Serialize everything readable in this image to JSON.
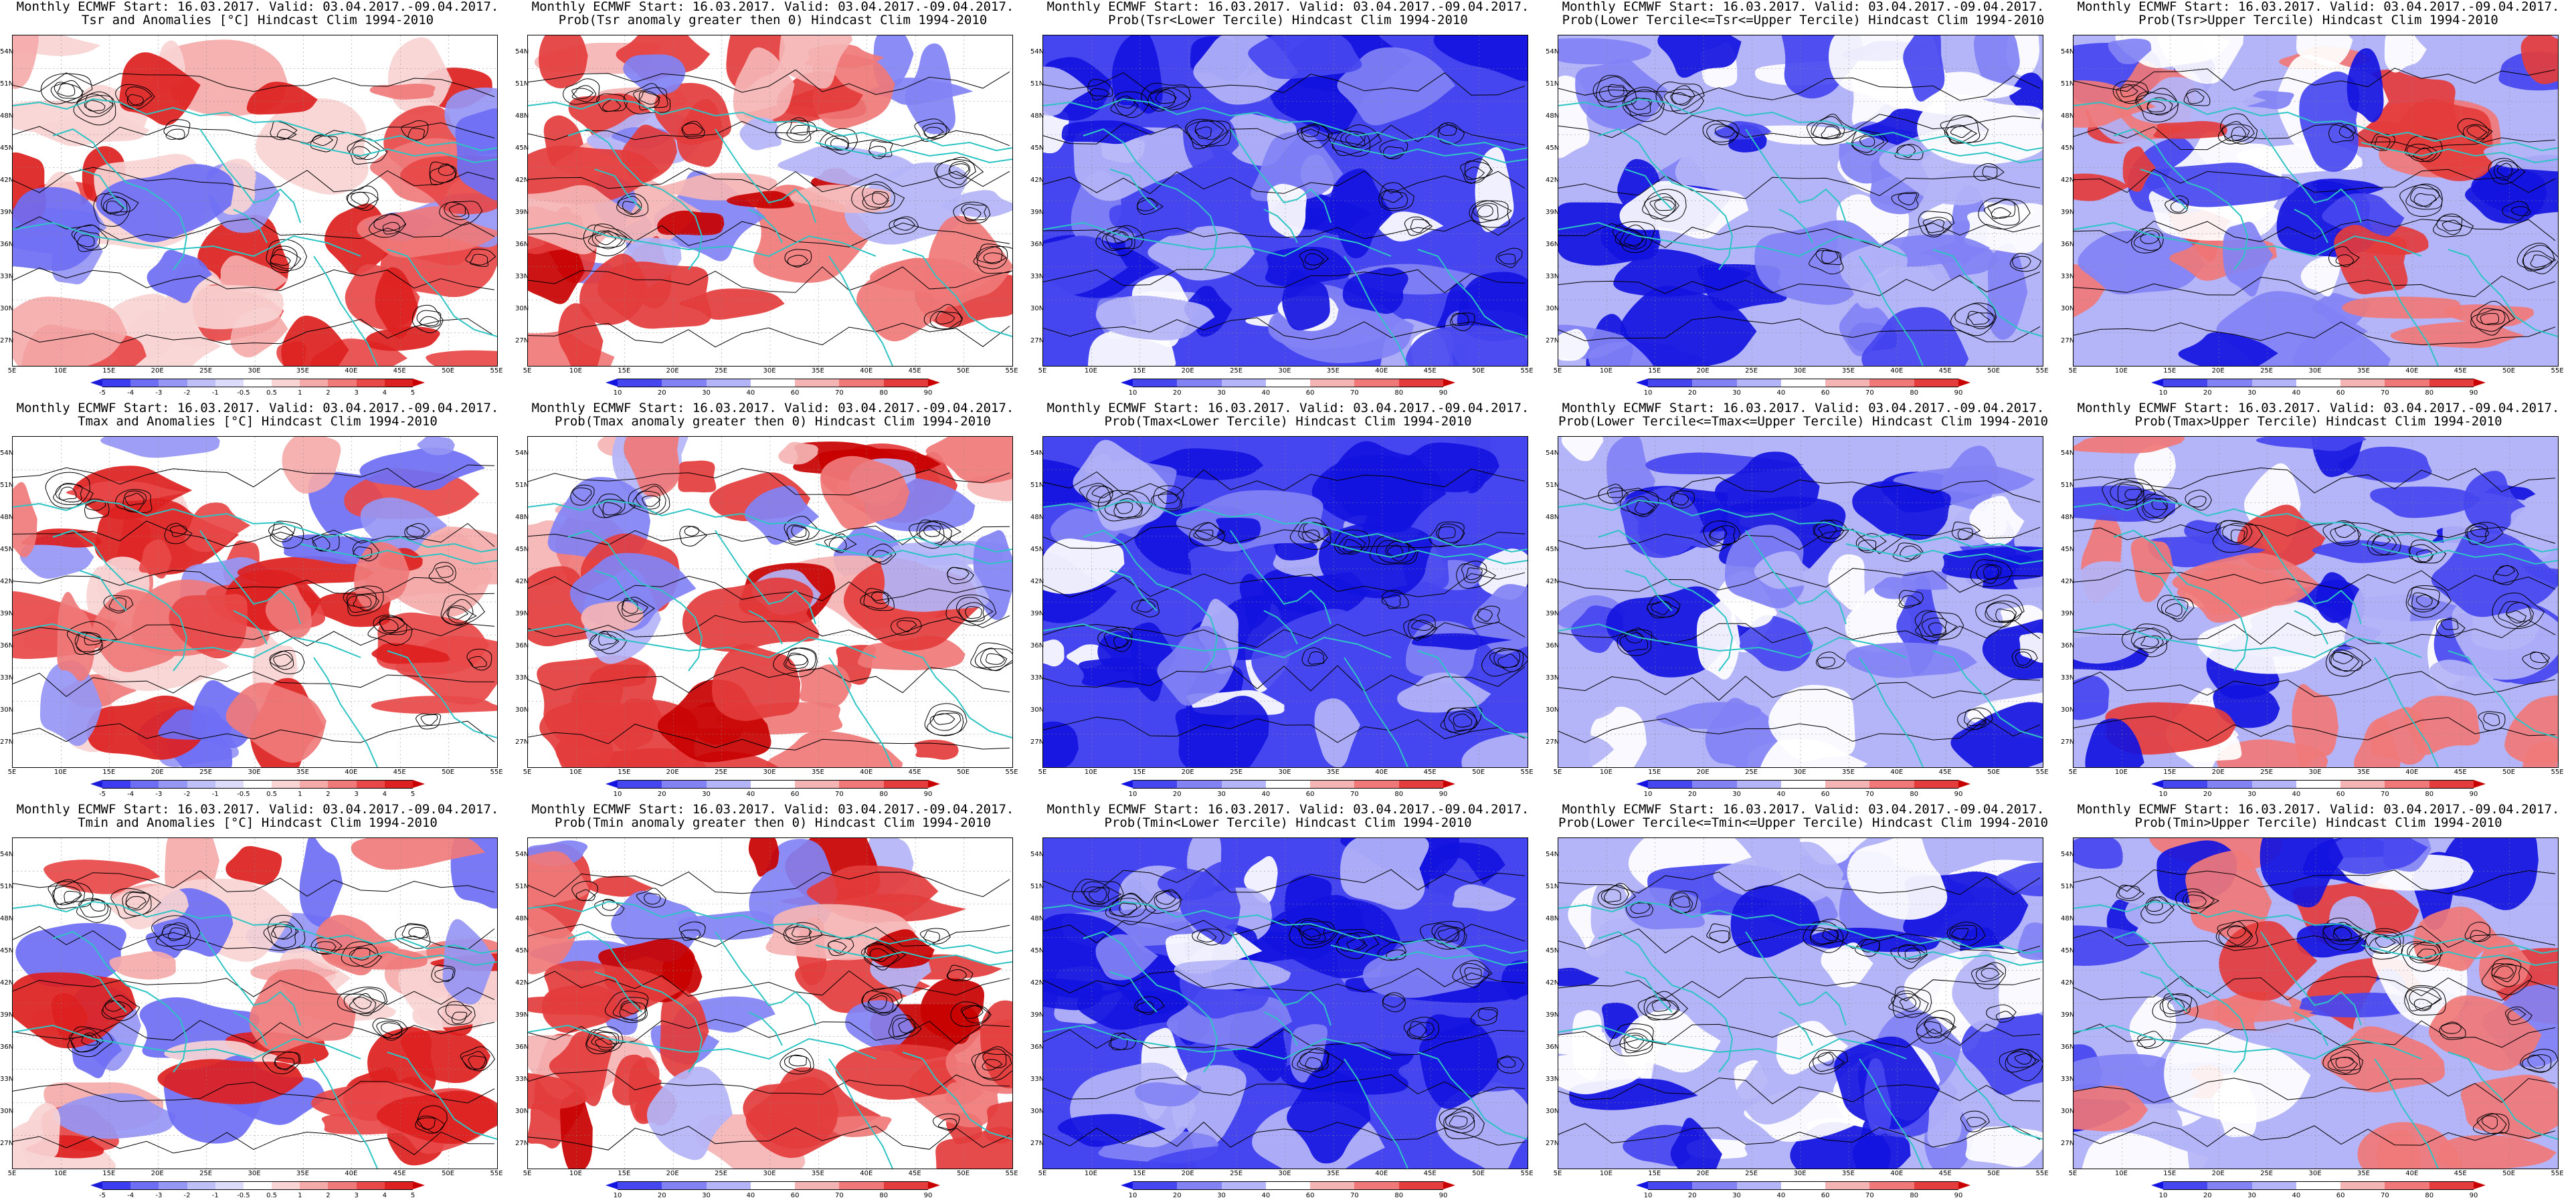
{
  "row_titles_line1": "Monthly ECMWF Start: 16.03.2017. Valid: 03.04.2017.-09.04.2017.",
  "rows": [
    {
      "panels": [
        {
          "title2": "Tsr and Anomalies [°C] Hindcast Clim 1994-2010",
          "kind": "anom",
          "scale": "anom"
        },
        {
          "title2": "Prob(Tsr anomaly greater then 0) Hindcast Clim 1994-2010",
          "kind": "pos",
          "scale": "prob"
        },
        {
          "title2": "Prob(Tsr<Lower Tercile) Hindcast Clim 1994-2010",
          "kind": "lower",
          "scale": "prob"
        },
        {
          "title2": "Prob(Lower Tercile<=Tsr<=Upper Tercile) Hindcast Clim 1994-2010",
          "kind": "mid",
          "scale": "prob"
        },
        {
          "title2": "Prob(Tsr>Upper Tercile) Hindcast Clim 1994-2010",
          "kind": "upper",
          "scale": "prob"
        }
      ]
    },
    {
      "panels": [
        {
          "title2": "Tmax and Anomalies [°C] Hindcast Clim 1994-2010",
          "kind": "anom",
          "scale": "anom"
        },
        {
          "title2": "Prob(Tmax anomaly greater then 0) Hindcast Clim 1994-2010",
          "kind": "pos",
          "scale": "prob"
        },
        {
          "title2": "Prob(Tmax<Lower Tercile) Hindcast Clim 1994-2010",
          "kind": "lower",
          "scale": "prob"
        },
        {
          "title2": "Prob(Lower Tercile<=Tmax<=Upper Tercile) Hindcast Clim 1994-2010",
          "kind": "mid",
          "scale": "prob"
        },
        {
          "title2": "Prob(Tmax>Upper Tercile) Hindcast Clim 1994-2010",
          "kind": "upper",
          "scale": "prob"
        }
      ]
    },
    {
      "panels": [
        {
          "title2": "Tmin and Anomalies [°C] Hindcast Clim 1994-2010",
          "kind": "anom",
          "scale": "anom"
        },
        {
          "title2": "Prob(Tmin anomaly greater then 0) Hindcast Clim 1994-2010",
          "kind": "pos",
          "scale": "prob"
        },
        {
          "title2": "Prob(Tmin<Lower Tercile) Hindcast Clim 1994-2010",
          "kind": "lower",
          "scale": "prob"
        },
        {
          "title2": "Prob(Lower Tercile<=Tmin<=Upper Tercile) Hindcast Clim 1994-2010",
          "kind": "mid",
          "scale": "prob"
        },
        {
          "title2": "Prob(Tmin>Upper Tercile) Hindcast Clim 1994-2010",
          "kind": "upper",
          "scale": "prob"
        }
      ]
    }
  ],
  "lat_labels": [
    "54N",
    "51N",
    "48N",
    "45N",
    "42N",
    "39N",
    "36N",
    "33N",
    "30N",
    "27N"
  ],
  "lon_labels": [
    "5E",
    "10E",
    "15E",
    "20E",
    "25E",
    "30E",
    "35E",
    "40E",
    "45E",
    "50E",
    "55E"
  ],
  "scales": {
    "anom": {
      "labels": [
        "-5",
        "-4",
        "-3",
        "-2",
        "-1",
        "-0.5",
        "0.5",
        "1",
        "2",
        "3",
        "4",
        "5"
      ],
      "colors": [
        "#1c1cd8",
        "#3c3cf0",
        "#6e6ef5",
        "#9696f5",
        "#bfbff7",
        "#dcdcfa",
        "#ffffff",
        "#f9d4d4",
        "#f5aaaa",
        "#f07a7a",
        "#e84848",
        "#dd2020",
        "#c80000"
      ]
    },
    "prob": {
      "labels": [
        "10",
        "20",
        "30",
        "40",
        "60",
        "70",
        "80",
        "90"
      ],
      "colors": [
        "#1414e0",
        "#4646f0",
        "#8282f5",
        "#b4b4f8",
        "#ffffff",
        "#f5b4b4",
        "#f07878",
        "#e43c3c",
        "#c80000"
      ]
    }
  },
  "colors": {
    "coastline": "#2ec4c4",
    "contour": "#000000",
    "frame": "#000000"
  }
}
